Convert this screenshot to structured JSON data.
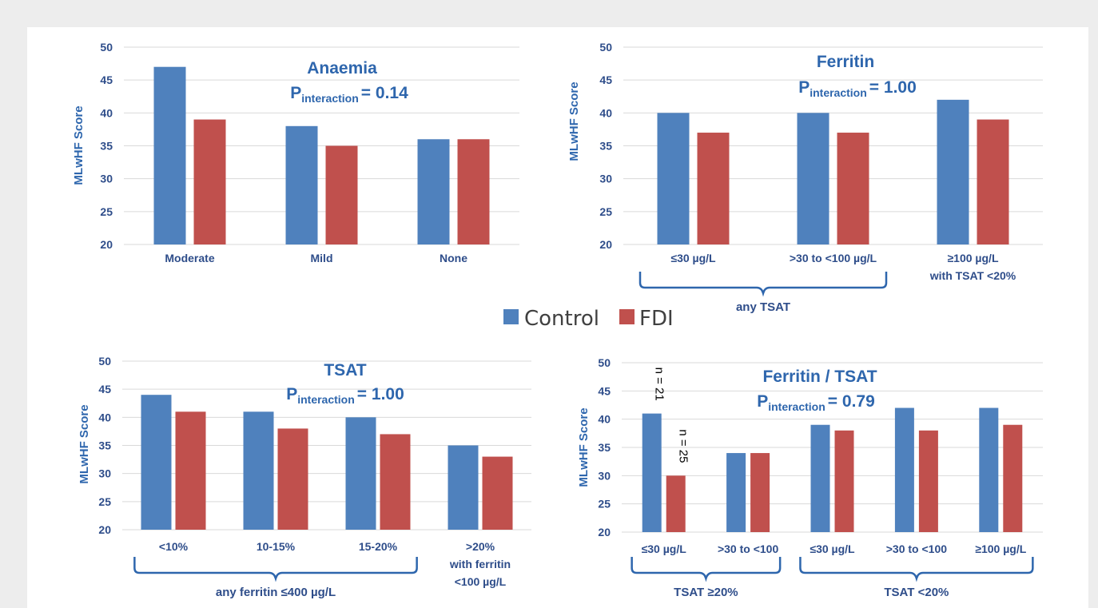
{
  "colors": {
    "control": "#4f81bd",
    "fdi": "#c0504d",
    "text": "#2e4d8a",
    "title": "#2e66ad"
  },
  "legend": {
    "control": "Control",
    "fdi": "FDI"
  },
  "chart_data": [
    {
      "type": "bar",
      "title": "Anaemia",
      "p_prefix": "P",
      "p_sub": "interaction",
      "p_value": "= 0.14",
      "ylabel": "MLwHF Score",
      "ylim": [
        20,
        50
      ],
      "yticks": [
        20,
        25,
        30,
        35,
        40,
        45,
        50
      ],
      "categories": [
        "Moderate",
        "Mild",
        "None"
      ],
      "series": [
        {
          "name": "Control",
          "values": [
            47,
            38,
            36
          ]
        },
        {
          "name": "FDI",
          "values": [
            39,
            35,
            36
          ]
        }
      ],
      "groups": []
    },
    {
      "type": "bar",
      "title": "Ferritin",
      "p_prefix": "P",
      "p_sub": "interaction",
      "p_value": "= 1.00",
      "ylabel": "MLwHF Score",
      "ylim": [
        20,
        50
      ],
      "yticks": [
        20,
        25,
        30,
        35,
        40,
        45,
        50
      ],
      "categories": [
        [
          "≤30 µg/L"
        ],
        [
          ">30 to <100 µg/L"
        ],
        [
          "≥100 µg/L",
          "with TSAT <20%"
        ]
      ],
      "series": [
        {
          "name": "Control",
          "values": [
            40,
            40,
            42
          ]
        },
        {
          "name": "FDI",
          "values": [
            37,
            37,
            39
          ]
        }
      ],
      "groups": [
        {
          "label": "any TSAT",
          "from": 0,
          "to": 1
        }
      ]
    },
    {
      "type": "bar",
      "title": "TSAT",
      "p_prefix": "P",
      "p_sub": "interaction",
      "p_value": "= 1.00",
      "ylabel": "MLwHF Score",
      "ylim": [
        20,
        50
      ],
      "yticks": [
        20,
        25,
        30,
        35,
        40,
        45,
        50
      ],
      "categories": [
        [
          "<10%"
        ],
        [
          "10-15%"
        ],
        [
          "15-20%"
        ],
        [
          ">20%",
          "with ferritin",
          "<100 µg/L"
        ]
      ],
      "series": [
        {
          "name": "Control",
          "values": [
            44,
            41,
            40,
            35
          ]
        },
        {
          "name": "FDI",
          "values": [
            41,
            38,
            37,
            33
          ]
        }
      ],
      "groups": [
        {
          "label": "any ferritin ≤400 µg/L",
          "from": 0,
          "to": 2
        }
      ]
    },
    {
      "type": "bar",
      "title": "Ferritin / TSAT",
      "p_prefix": "P",
      "p_sub": "interaction",
      "p_value": "= 0.79",
      "ylabel": "MLwHF Score",
      "ylim": [
        20,
        50
      ],
      "yticks": [
        20,
        25,
        30,
        35,
        40,
        45,
        50
      ],
      "categories": [
        [
          "≤30 µg/L"
        ],
        [
          ">30 to <100"
        ],
        [
          "≤30 µg/L"
        ],
        [
          ">30 to <100"
        ],
        [
          "≥100 µg/L"
        ]
      ],
      "series": [
        {
          "name": "Control",
          "values": [
            41,
            34,
            39,
            42,
            42
          ]
        },
        {
          "name": "FDI",
          "values": [
            30,
            34,
            38,
            38,
            39
          ]
        }
      ],
      "groups": [
        {
          "label": "TSAT ≥20%",
          "from": 0,
          "to": 1
        },
        {
          "label": "TSAT <20%",
          "from": 2,
          "to": 4
        }
      ],
      "annotations": [
        {
          "text": "n = 21",
          "category": 0,
          "series": 0
        },
        {
          "text": "n = 25",
          "category": 0,
          "series": 1
        }
      ]
    }
  ]
}
